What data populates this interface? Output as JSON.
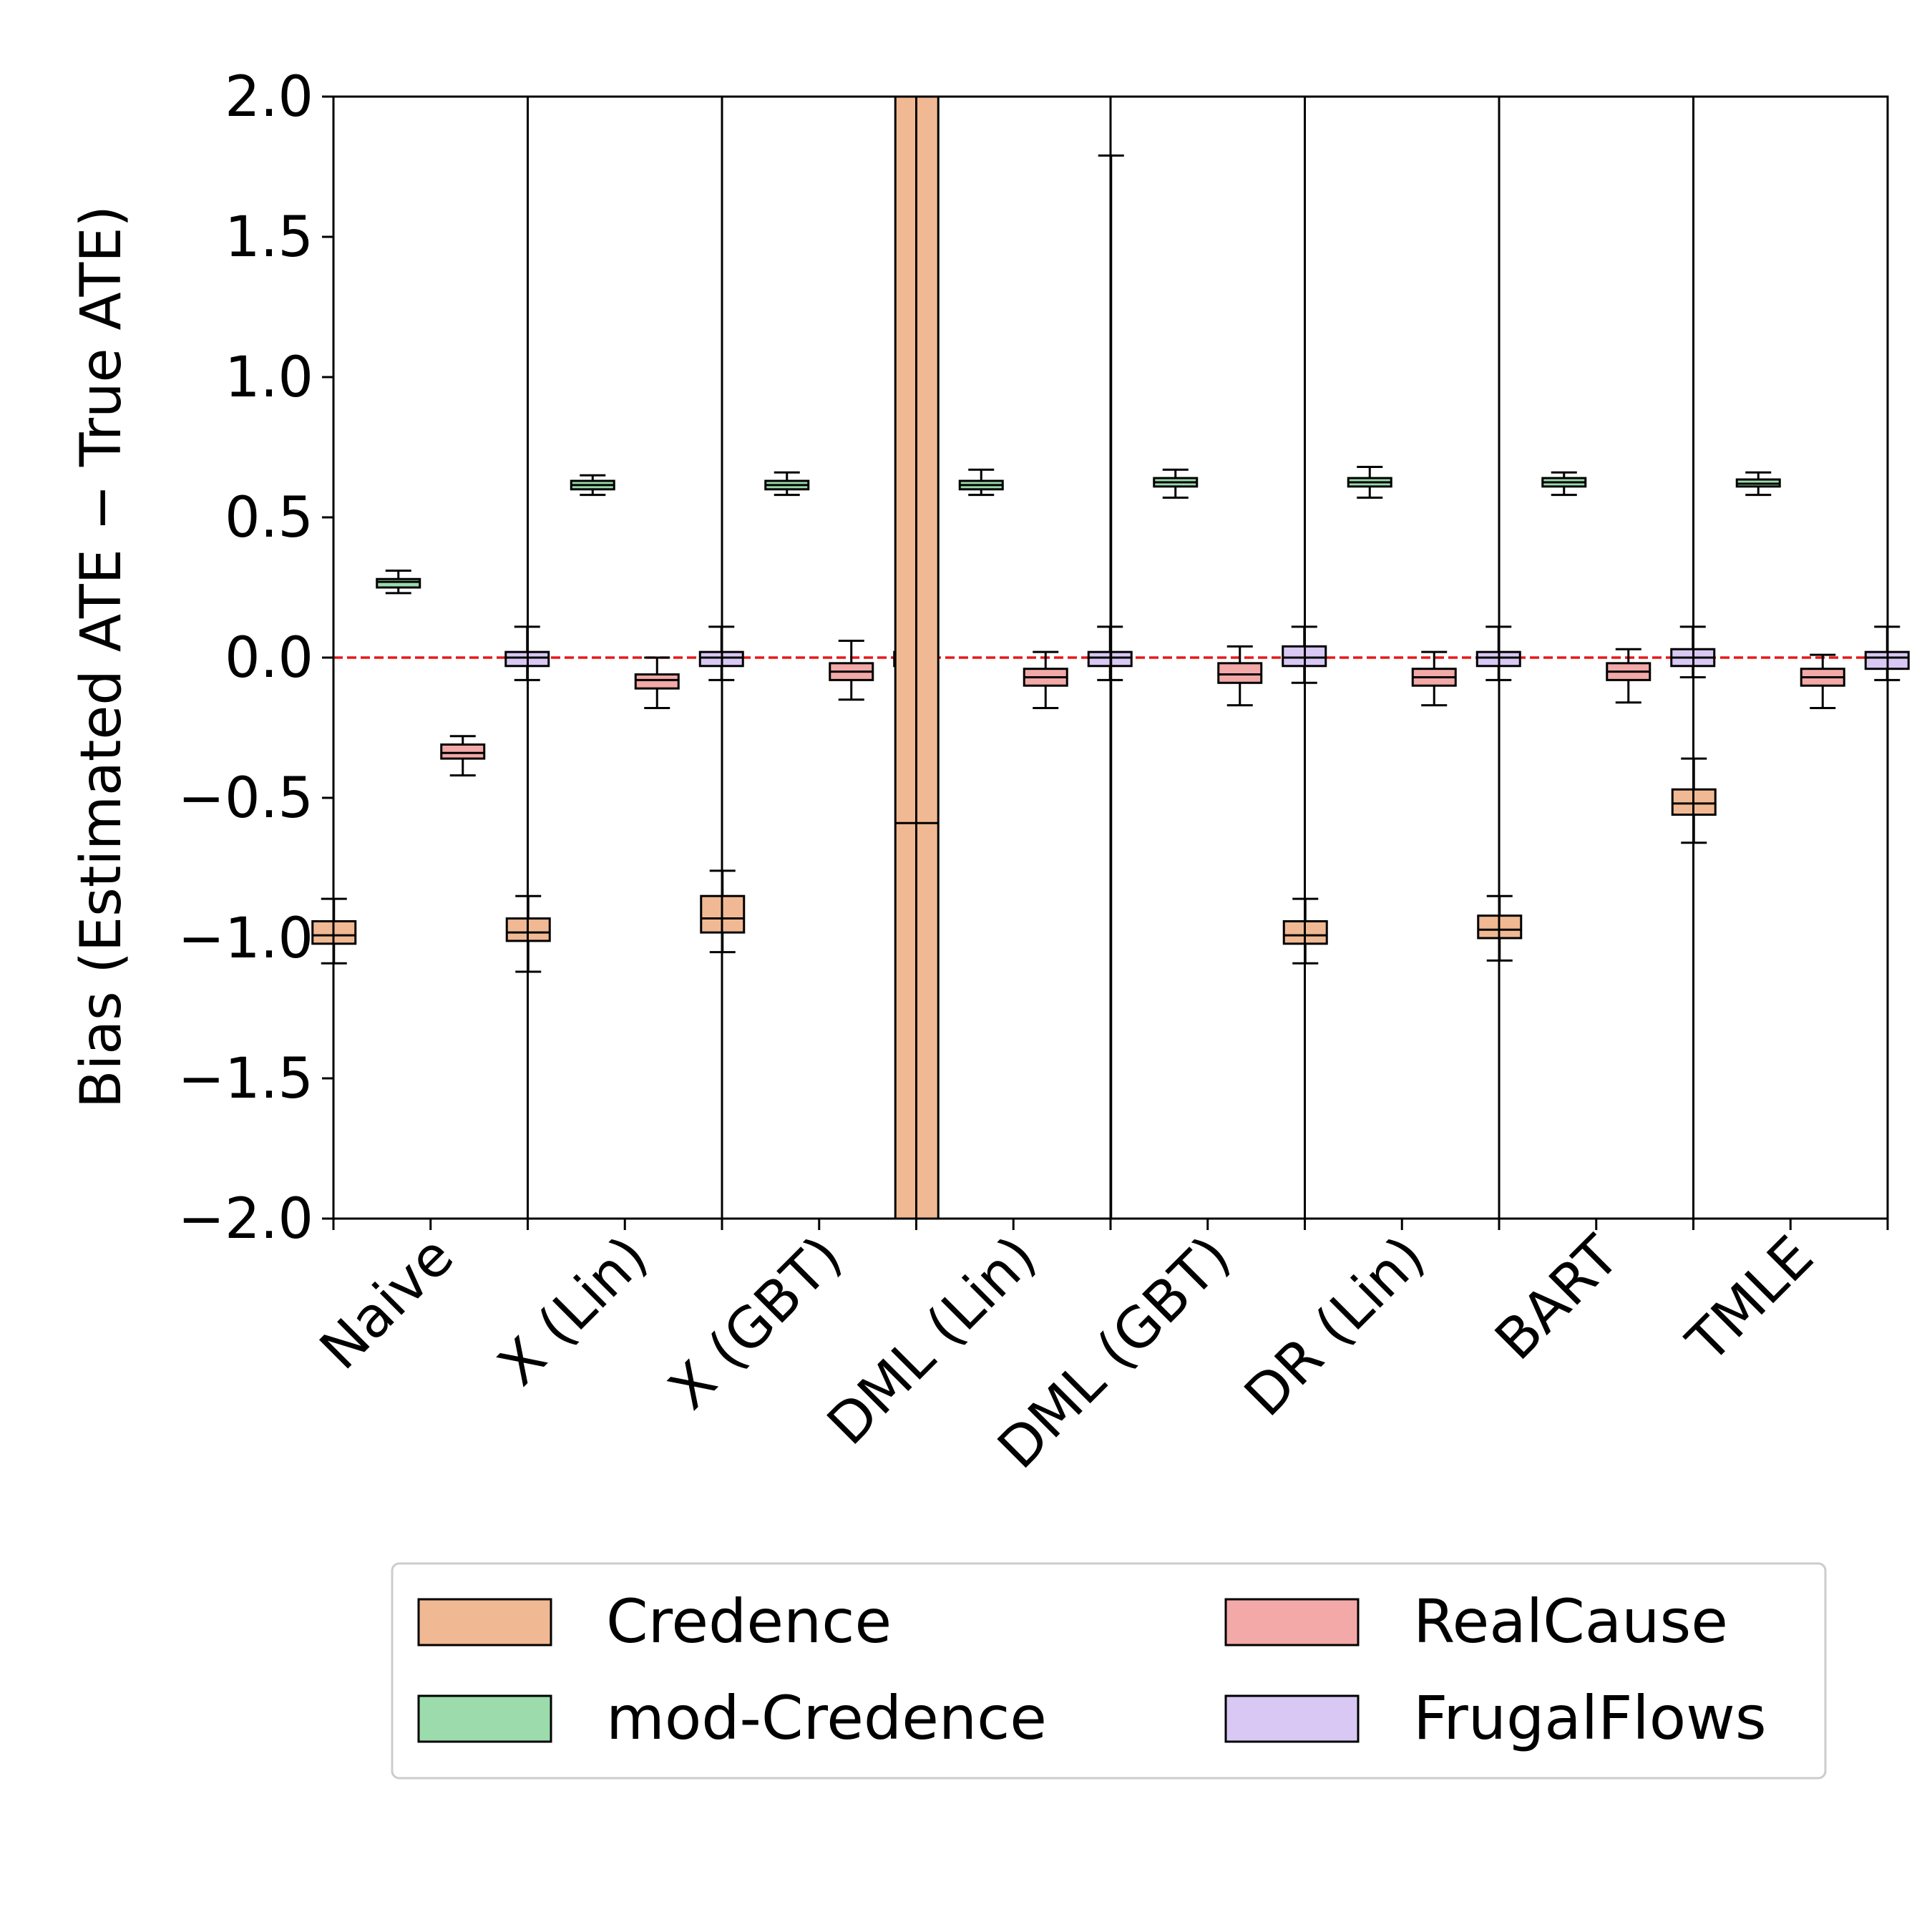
{
  "chart_data": {
    "type": "boxplot",
    "title": "",
    "xlabel": "",
    "ylabel": "Bias (Estimated ATE − True ATE)",
    "ylim": [
      -2.0,
      2.0
    ],
    "yticks": [
      -2.0,
      -1.5,
      -1.0,
      -0.5,
      0.0,
      0.5,
      1.0,
      1.5,
      2.0
    ],
    "ytick_labels": [
      "−2.0",
      "−1.5",
      "−1.0",
      "−0.5",
      "0.0",
      "0.5",
      "1.0",
      "1.5",
      "2.0"
    ],
    "reference_line": {
      "y": 0.0,
      "color": "#e8181a",
      "style": "dashed"
    },
    "categories": [
      "Naive",
      "X (Lin)",
      "X (GBT)",
      "DML (Lin)",
      "DML (GBT)",
      "DR (Lin)",
      "BART",
      "TMLE"
    ],
    "series": [
      {
        "name": "Credence",
        "color": "#f0b993",
        "boxes": [
          {
            "whislo": -1.09,
            "q1": -1.02,
            "med": -0.99,
            "q3": -0.94,
            "whishi": -0.86
          },
          {
            "whislo": -1.12,
            "q1": -1.01,
            "med": -0.98,
            "q3": -0.93,
            "whishi": -0.85
          },
          {
            "whislo": -1.05,
            "q1": -0.98,
            "med": -0.93,
            "q3": -0.85,
            "whishi": -0.76
          },
          {
            "whislo": -2.0,
            "q1": -2.0,
            "med": -0.59,
            "q3": 2.0,
            "whishi": 2.0
          },
          {
            "whislo": -2.0,
            "q1": -2.0,
            "med": -2.0,
            "q3": -2.0,
            "whishi": 1.79
          },
          {
            "whislo": -1.09,
            "q1": -1.02,
            "med": -0.99,
            "q3": -0.94,
            "whishi": -0.86
          },
          {
            "whislo": -1.08,
            "q1": -1.0,
            "med": -0.97,
            "q3": -0.92,
            "whishi": -0.85
          },
          {
            "whislo": -0.66,
            "q1": -0.56,
            "med": -0.52,
            "q3": -0.47,
            "whishi": -0.36
          }
        ]
      },
      {
        "name": "mod-Credence",
        "color": "#9bdbac",
        "boxes": [
          {
            "whislo": 0.23,
            "q1": 0.25,
            "med": 0.27,
            "q3": 0.28,
            "whishi": 0.31
          },
          {
            "whislo": 0.58,
            "q1": 0.6,
            "med": 0.615,
            "q3": 0.63,
            "whishi": 0.65
          },
          {
            "whislo": 0.58,
            "q1": 0.6,
            "med": 0.615,
            "q3": 0.63,
            "whishi": 0.66
          },
          {
            "whislo": 0.58,
            "q1": 0.6,
            "med": 0.615,
            "q3": 0.63,
            "whishi": 0.67
          },
          {
            "whislo": 0.57,
            "q1": 0.61,
            "med": 0.625,
            "q3": 0.64,
            "whishi": 0.67
          },
          {
            "whislo": 0.57,
            "q1": 0.61,
            "med": 0.625,
            "q3": 0.64,
            "whishi": 0.68
          },
          {
            "whislo": 0.58,
            "q1": 0.61,
            "med": 0.625,
            "q3": 0.64,
            "whishi": 0.66
          },
          {
            "whislo": 0.58,
            "q1": 0.61,
            "med": 0.62,
            "q3": 0.635,
            "whishi": 0.66
          }
        ]
      },
      {
        "name": "RealCause",
        "color": "#f2a9a8",
        "boxes": [
          {
            "whislo": -0.42,
            "q1": -0.36,
            "med": -0.34,
            "q3": -0.31,
            "whishi": -0.28
          },
          {
            "whislo": -0.18,
            "q1": -0.11,
            "med": -0.08,
            "q3": -0.06,
            "whishi": 0.0
          },
          {
            "whislo": -0.15,
            "q1": -0.08,
            "med": -0.05,
            "q3": -0.02,
            "whishi": 0.06
          },
          {
            "whislo": -0.18,
            "q1": -0.1,
            "med": -0.07,
            "q3": -0.04,
            "whishi": 0.02
          },
          {
            "whislo": -0.17,
            "q1": -0.09,
            "med": -0.06,
            "q3": -0.02,
            "whishi": 0.04
          },
          {
            "whislo": -0.17,
            "q1": -0.1,
            "med": -0.07,
            "q3": -0.04,
            "whishi": 0.02
          },
          {
            "whislo": -0.16,
            "q1": -0.08,
            "med": -0.05,
            "q3": -0.02,
            "whishi": 0.03
          },
          {
            "whislo": -0.18,
            "q1": -0.1,
            "med": -0.07,
            "q3": -0.04,
            "whishi": 0.01
          }
        ]
      },
      {
        "name": "FrugalFlows",
        "color": "#d8c8f3",
        "boxes": [
          {
            "whislo": -0.08,
            "q1": -0.03,
            "med": 0.0,
            "q3": 0.02,
            "whishi": 0.11
          },
          {
            "whislo": -0.08,
            "q1": -0.03,
            "med": 0.0,
            "q3": 0.02,
            "whishi": 0.11
          },
          {
            "whislo": -0.08,
            "q1": -0.03,
            "med": 0.0,
            "q3": 0.02,
            "whishi": 0.11
          },
          {
            "whislo": -0.08,
            "q1": -0.03,
            "med": 0.0,
            "q3": 0.02,
            "whishi": 0.11
          },
          {
            "whislo": -0.09,
            "q1": -0.03,
            "med": 0.0,
            "q3": 0.04,
            "whishi": 0.11
          },
          {
            "whislo": -0.08,
            "q1": -0.03,
            "med": 0.0,
            "q3": 0.02,
            "whishi": 0.11
          },
          {
            "whislo": -0.07,
            "q1": -0.03,
            "med": 0.0,
            "q3": 0.03,
            "whishi": 0.11
          },
          {
            "whislo": -0.08,
            "q1": -0.04,
            "med": 0.0,
            "q3": 0.02,
            "whishi": 0.11
          }
        ]
      }
    ],
    "legend": {
      "location": "bottom-center",
      "columns": 2,
      "entries": [
        "Credence",
        "RealCause",
        "mod-Credence",
        "FrugalFlows"
      ]
    }
  }
}
